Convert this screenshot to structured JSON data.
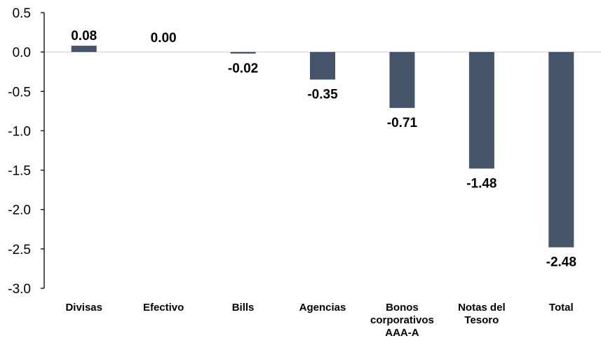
{
  "chart_data": {
    "type": "bar",
    "categories": [
      [
        "Divisas"
      ],
      [
        "Efectivo"
      ],
      [
        "Bills"
      ],
      [
        "Agencias"
      ],
      [
        "Bonos",
        "corporativos",
        "AAA-A"
      ],
      [
        "Notas del",
        "Tesoro"
      ],
      [
        "Total"
      ]
    ],
    "values": [
      0.08,
      0.0,
      -0.02,
      -0.35,
      -0.71,
      -1.48,
      -2.48
    ],
    "data_labels": [
      "0.08",
      "0.00",
      "-0.02",
      "-0.35",
      "-0.71",
      "-1.48",
      "-2.48"
    ],
    "title": "",
    "xlabel": "",
    "ylabel": "",
    "ylim": [
      -3.0,
      0.5
    ],
    "yticks": [
      0.5,
      0.0,
      -0.5,
      -1.0,
      -1.5,
      -2.0,
      -2.5,
      -3.0
    ],
    "ytick_labels": [
      "0.5",
      "0.0",
      "-0.5",
      "-1.0",
      "-1.5",
      "-2.0",
      "-2.5",
      "-3.0"
    ],
    "bar_color": "#44546a",
    "grid": false,
    "legend": "none"
  }
}
